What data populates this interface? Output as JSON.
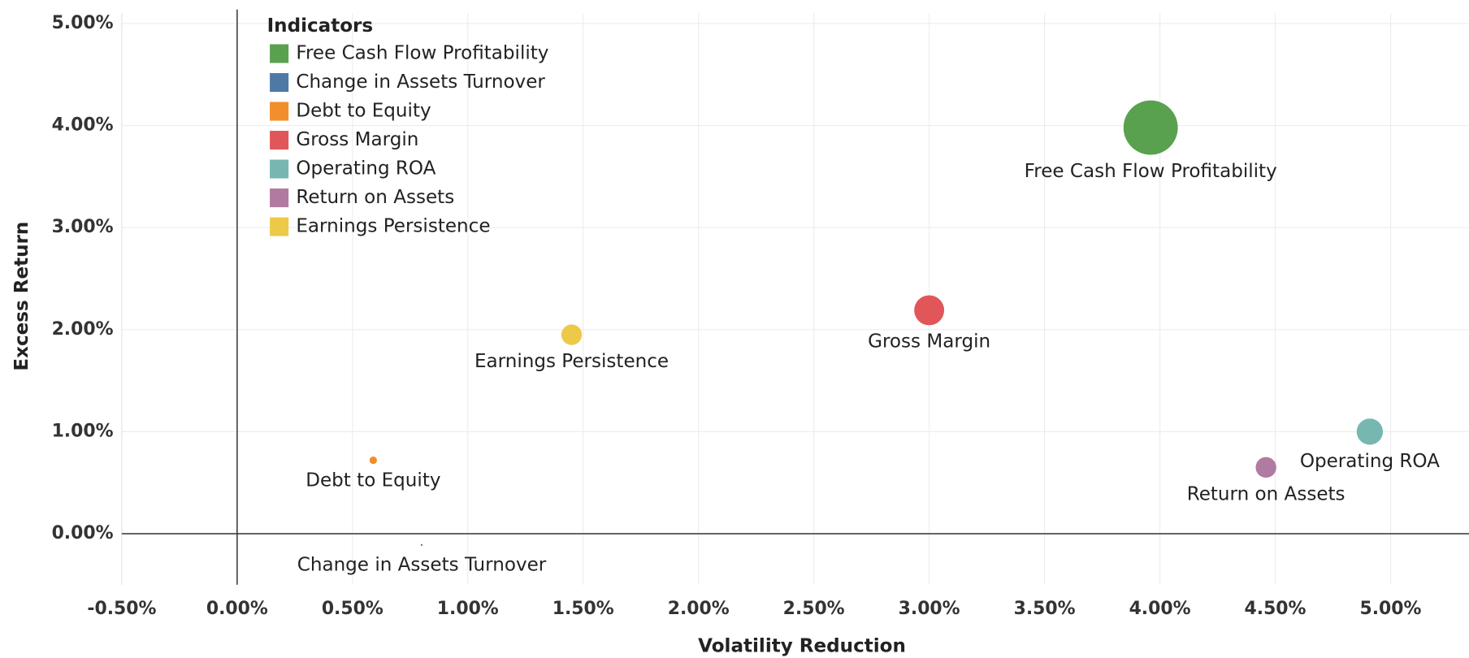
{
  "chart_data": {
    "type": "bubble",
    "x_label": "Volatility Reduction",
    "y_label": "Excess Return",
    "legend_title": "Indicators",
    "legend_position": "top-left",
    "grid": true,
    "xlim": [
      -0.5,
      5.34
    ],
    "ylim": [
      -0.5,
      5.1
    ],
    "xticks": [
      {
        "value": -0.5,
        "label": "-0.50%"
      },
      {
        "value": 0,
        "label": "0.00%"
      },
      {
        "value": 0.5,
        "label": "0.50%"
      },
      {
        "value": 1,
        "label": "1.00%"
      },
      {
        "value": 1.5,
        "label": "1.50%"
      },
      {
        "value": 2,
        "label": "2.00%"
      },
      {
        "value": 2.5,
        "label": "2.50%"
      },
      {
        "value": 3,
        "label": "3.00%"
      },
      {
        "value": 3.5,
        "label": "3.50%"
      },
      {
        "value": 4,
        "label": "4.00%"
      },
      {
        "value": 4.5,
        "label": "4.50%"
      },
      {
        "value": 5,
        "label": "5.00%"
      }
    ],
    "yticks": [
      {
        "value": 0,
        "label": "0.00%"
      },
      {
        "value": 1,
        "label": "1.00%"
      },
      {
        "value": 2,
        "label": "2.00%"
      },
      {
        "value": 3,
        "label": "3.00%"
      },
      {
        "value": 4,
        "label": "4.00%"
      },
      {
        "value": 5,
        "label": "5.00%"
      }
    ],
    "series": [
      {
        "name": "Free Cash Flow Profitability",
        "color": "#59a14f",
        "x": [
          3.96
        ],
        "values": [
          3.98
        ],
        "sizes": [
          841
        ]
      },
      {
        "name": "Change in Assets Turnover",
        "color": "#4e79a7",
        "x": [
          0.8
        ],
        "values": [
          -0.11
        ],
        "sizes": [
          1
        ]
      },
      {
        "name": "Debt to Equity",
        "color": "#f28e2b",
        "x": [
          0.59
        ],
        "values": [
          0.72
        ],
        "sizes": [
          16
        ]
      },
      {
        "name": "Gross Margin",
        "color": "#e15759",
        "x": [
          3.0
        ],
        "values": [
          2.19
        ],
        "sizes": [
          256
        ]
      },
      {
        "name": "Operating ROA",
        "color": "#76b7b2",
        "x": [
          4.91
        ],
        "values": [
          1.0
        ],
        "sizes": [
          196
        ]
      },
      {
        "name": "Return on Assets",
        "color": "#b07aa1",
        "x": [
          4.46
        ],
        "values": [
          0.65
        ],
        "sizes": [
          121
        ]
      },
      {
        "name": "Earnings Persistence",
        "color": "#edc948",
        "x": [
          1.45
        ],
        "values": [
          1.95
        ],
        "sizes": [
          121
        ]
      }
    ]
  }
}
